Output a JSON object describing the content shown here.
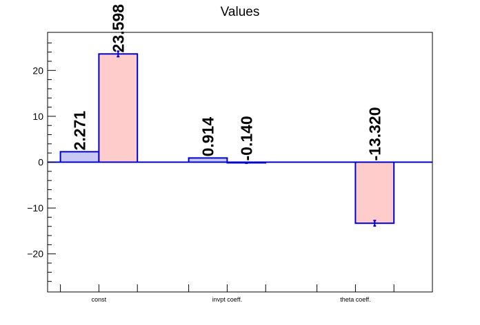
{
  "chart_data": {
    "type": "bar",
    "title": "Values",
    "categories": [
      "const",
      "invpt coeff.",
      "theta coeff."
    ],
    "ylim": [
      -28.3,
      28.3
    ],
    "yticks": [
      -20,
      -10,
      0,
      10,
      20
    ],
    "ytick_labels": [
      "−20",
      "−10",
      "0",
      "10",
      "20"
    ],
    "grid": false,
    "legend": "none",
    "series": [
      {
        "fill": "#c8c8f5",
        "stroke": "#0000cc",
        "values": [
          2.271,
          0.914,
          null
        ],
        "errors": [
          0,
          0,
          null
        ],
        "labels": [
          "2.271",
          "0.914",
          ""
        ]
      },
      {
        "fill": "#ffcccc",
        "stroke": "#0000cc",
        "values": [
          23.598,
          -0.14,
          -13.32
        ],
        "errors": [
          0.6,
          0.1,
          0.6
        ],
        "labels": [
          "23.598",
          "-0.140",
          "-13.320"
        ]
      }
    ]
  }
}
